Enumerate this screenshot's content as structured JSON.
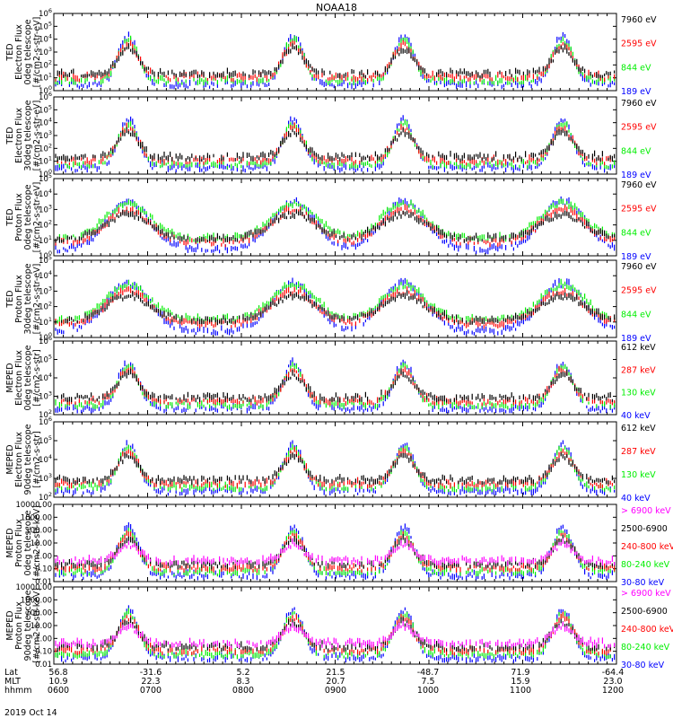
{
  "title": "NOAA18",
  "date": "2019 Oct 14",
  "colors": {
    "black": "#000000",
    "red": "#ff0000",
    "green": "#00ee00",
    "blue": "#0000ff",
    "magenta": "#ff00ff"
  },
  "chart_data": [
    {
      "type": "scatter",
      "ylabel": [
        "TED",
        "Electron Flux",
        "0deg telescope",
        "[#/cm2-s-str-eV]"
      ],
      "log": true,
      "ylim": [
        1,
        1000000
      ],
      "ytick_labels": [
        "10^0",
        "10^1",
        "10^2",
        "10^3",
        "10^4",
        "10^5",
        "10^6"
      ],
      "legend": [
        {
          "label": "7960 eV",
          "color": "#000000"
        },
        {
          "label": "2595 eV",
          "color": "#ff0000"
        },
        {
          "label": "844 eV",
          "color": "#00ee00"
        },
        {
          "label": "189 eV",
          "color": "#0000ff"
        }
      ]
    },
    {
      "type": "scatter",
      "ylabel": [
        "TED",
        "Electron Flux",
        "30deg telescope",
        "[#/cm2-s-str-eV]"
      ],
      "log": true,
      "ylim": [
        1,
        1000000
      ],
      "ytick_labels": [
        "10^0",
        "10^1",
        "10^2",
        "10^3",
        "10^4",
        "10^5",
        "10^6"
      ],
      "legend": [
        {
          "label": "7960 eV",
          "color": "#000000"
        },
        {
          "label": "2595 eV",
          "color": "#ff0000"
        },
        {
          "label": "844 eV",
          "color": "#00ee00"
        },
        {
          "label": "189 eV",
          "color": "#0000ff"
        }
      ]
    },
    {
      "type": "scatter",
      "ylabel": [
        "TED",
        "Proton Flux",
        "0deg telescope",
        "[#/cm2-s-str-eV]"
      ],
      "log": true,
      "ylim": [
        1,
        100000
      ],
      "ytick_labels": [
        "10^0",
        "10^1",
        "10^2",
        "10^3",
        "10^4",
        "10^5"
      ],
      "legend": [
        {
          "label": "7960 eV",
          "color": "#000000"
        },
        {
          "label": "2595 eV",
          "color": "#ff0000"
        },
        {
          "label": "844 eV",
          "color": "#00ee00"
        },
        {
          "label": "189 eV",
          "color": "#0000ff"
        }
      ]
    },
    {
      "type": "scatter",
      "ylabel": [
        "TED",
        "Proton Flux",
        "30deg telescope",
        "[#/cm2-s-str-eV]"
      ],
      "log": true,
      "ylim": [
        1,
        100000
      ],
      "ytick_labels": [
        "10^0",
        "10^1",
        "10^2",
        "10^3",
        "10^4",
        "10^5"
      ],
      "legend": [
        {
          "label": "7960 eV",
          "color": "#000000"
        },
        {
          "label": "2595 eV",
          "color": "#ff0000"
        },
        {
          "label": "844 eV",
          "color": "#00ee00"
        },
        {
          "label": "189 eV",
          "color": "#0000ff"
        }
      ]
    },
    {
      "type": "scatter",
      "ylabel": [
        "MEPED",
        "Electron Flux",
        "0deg telescope",
        "[#/cm2-s-str]"
      ],
      "log": true,
      "ylim": [
        100,
        1000000
      ],
      "ytick_labels": [
        "10^2",
        "10^3",
        "10^4",
        "10^5",
        "10^6"
      ],
      "legend": [
        {
          "label": "612 keV",
          "color": "#000000"
        },
        {
          "label": "287 keV",
          "color": "#ff0000"
        },
        {
          "label": "130 keV",
          "color": "#00ee00"
        },
        {
          "label": "40 keV",
          "color": "#0000ff"
        }
      ]
    },
    {
      "type": "scatter",
      "ylabel": [
        "MEPED",
        "Electron Flux",
        "90deg telescope",
        "[#/cm2-s-str]"
      ],
      "log": true,
      "ylim": [
        100,
        1000000
      ],
      "ytick_labels": [
        "10^2",
        "10^3",
        "10^4",
        "10^5",
        "10^6"
      ],
      "legend": [
        {
          "label": "612 keV",
          "color": "#000000"
        },
        {
          "label": "287 keV",
          "color": "#ff0000"
        },
        {
          "label": "130 keV",
          "color": "#00ee00"
        },
        {
          "label": "40 keV",
          "color": "#0000ff"
        }
      ]
    },
    {
      "type": "scatter",
      "ylabel": [
        "MEPED",
        "Proton Flux",
        "0deg telescope",
        "[#/cm2-s-str-keV]"
      ],
      "log": true,
      "ylim": [
        0.01,
        10000
      ],
      "ytick_labels": [
        "0.01",
        "0.10",
        "1.00",
        "10.00",
        "100.00",
        "1000.00",
        "10000.00"
      ],
      "legend": [
        {
          "label": "> 6900 keV",
          "color": "#ff00ff"
        },
        {
          "label": "2500-6900",
          "color": "#000000"
        },
        {
          "label": "240-800 keV",
          "color": "#ff0000"
        },
        {
          "label": "80-240 keV",
          "color": "#00ee00"
        },
        {
          "label": "30-80 keV",
          "color": "#0000ff"
        }
      ]
    },
    {
      "type": "scatter",
      "ylabel": [
        "MEPED",
        "Proton Flux",
        "90deg telescope",
        "[#/cm2-s-str-keV]"
      ],
      "log": true,
      "ylim": [
        0.01,
        10000
      ],
      "ytick_labels": [
        "0.01",
        "0.10",
        "1.00",
        "10.00",
        "100.00",
        "1000.00",
        "10000.00"
      ],
      "legend": [
        {
          "label": "> 6900 keV",
          "color": "#ff00ff"
        },
        {
          "label": "2500-6900",
          "color": "#000000"
        },
        {
          "label": "240-800 keV",
          "color": "#ff0000"
        },
        {
          "label": "80-240 keV",
          "color": "#00ee00"
        },
        {
          "label": "30-80 keV",
          "color": "#0000ff"
        }
      ]
    }
  ],
  "x_axis": {
    "row_labels": [
      "Lat",
      "MLT",
      "hhmm"
    ],
    "columns": [
      {
        "lat": "56.8",
        "mlt": "10.9",
        "hhmm": "0600"
      },
      {
        "lat": "-31.6",
        "mlt": "22.3",
        "hhmm": "0700"
      },
      {
        "lat": "5.2",
        "mlt": "8.3",
        "hhmm": "0800"
      },
      {
        "lat": "21.5",
        "mlt": "20.7",
        "hhmm": "0900"
      },
      {
        "lat": "-48.7",
        "mlt": "7.5",
        "hhmm": "1000"
      },
      {
        "lat": "71.9",
        "mlt": "15.9",
        "hhmm": "1100"
      },
      {
        "lat": "-64.4",
        "mlt": "23.0",
        "hhmm": "1200"
      }
    ]
  }
}
